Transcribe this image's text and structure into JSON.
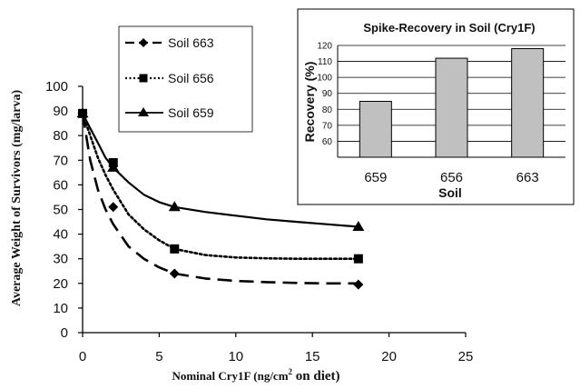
{
  "chart_data": [
    {
      "type": "line",
      "xlabel_prefix": "Nominal Cry1F (ng/cm",
      "xlabel_sup": "2",
      "xlabel_suffix": " on diet)",
      "ylabel": "Average Weight of Survivors (mg/larva)",
      "xlim": [
        0,
        25
      ],
      "ylim": [
        0,
        100
      ],
      "xticks": [
        "0",
        "5",
        "10",
        "15",
        "20",
        "25"
      ],
      "yticks": [
        "0",
        "10",
        "20",
        "30",
        "40",
        "50",
        "60",
        "70",
        "80",
        "90",
        "100"
      ],
      "legend_position": "top-left",
      "series": [
        {
          "name": "Soil 663",
          "marker": "diamond",
          "line_style": "long-dash",
          "x": [
            0,
            2,
            6,
            18
          ],
          "y": [
            89,
            51,
            24,
            19.5
          ],
          "curve_x": [
            0,
            0.5,
            1,
            1.5,
            2,
            3,
            4,
            5,
            6,
            8,
            10,
            12,
            14,
            16,
            18
          ],
          "curve_y": [
            89,
            70,
            58,
            50,
            44,
            35,
            30,
            26.5,
            24,
            22,
            21,
            20.5,
            20.2,
            20,
            20
          ]
        },
        {
          "name": "Soil 656",
          "marker": "square",
          "line_style": "dotted",
          "x": [
            0,
            2,
            6,
            18
          ],
          "y": [
            89,
            69,
            34,
            30
          ],
          "curve_x": [
            0,
            0.5,
            1,
            1.5,
            2,
            3,
            4,
            5,
            6,
            8,
            10,
            12,
            14,
            16,
            18
          ],
          "curve_y": [
            89,
            80,
            71,
            64,
            58,
            48,
            42,
            37.5,
            34,
            31.5,
            30.5,
            30.2,
            30,
            30,
            30
          ]
        },
        {
          "name": "Soil 659",
          "marker": "triangle",
          "line_style": "solid",
          "x": [
            0,
            2,
            6,
            18
          ],
          "y": [
            89,
            67,
            51,
            43
          ],
          "curve_x": [
            0,
            0.5,
            1,
            1.5,
            2,
            3,
            4,
            5,
            6,
            8,
            10,
            12,
            14,
            16,
            18
          ],
          "curve_y": [
            89,
            83,
            77,
            71,
            67,
            61,
            56,
            53,
            51,
            49,
            47.5,
            46,
            45,
            44,
            43
          ]
        }
      ]
    },
    {
      "type": "bar",
      "title": "Spike-Recovery in Soil (Cry1F)",
      "xlabel": "Soil",
      "ylabel": "Recovery (%)",
      "ylim": [
        50,
        120
      ],
      "yticks": [
        "60",
        "70",
        "80",
        "90",
        "100",
        "110",
        "120"
      ],
      "categories": [
        "659",
        "656",
        "663"
      ],
      "values": [
        85,
        112,
        118
      ],
      "bar_color": "#c0c0c0"
    }
  ]
}
